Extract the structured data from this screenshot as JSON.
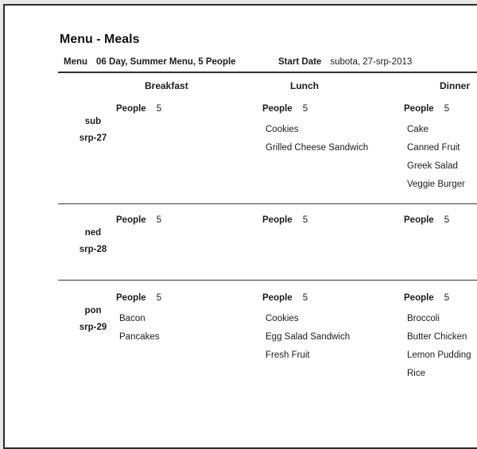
{
  "page": {
    "title": "Menu - Meals",
    "meta": {
      "menu_label": "Menu",
      "menu_value": "06 Day, Summer Menu, 5 People",
      "start_date_label": "Start Date",
      "start_date_value": "subota, 27-srp-2013"
    },
    "columns": [
      "Breakfast",
      "Lunch",
      "Dinner"
    ],
    "people_label": "People",
    "days": [
      {
        "day": "sub",
        "date": "srp-27",
        "meals": {
          "breakfast": {
            "people": "5",
            "items": []
          },
          "lunch": {
            "people": "5",
            "items": [
              "Cookies",
              "Grilled Cheese Sandwich"
            ]
          },
          "dinner": {
            "people": "5",
            "items": [
              "Cake",
              "Canned Fruit",
              "Greek Salad",
              "Veggie Burger"
            ]
          }
        }
      },
      {
        "day": "ned",
        "date": "srp-28",
        "meals": {
          "breakfast": {
            "people": "5",
            "items": []
          },
          "lunch": {
            "people": "5",
            "items": []
          },
          "dinner": {
            "people": "5",
            "items": []
          }
        }
      },
      {
        "day": "pon",
        "date": "srp-29",
        "meals": {
          "breakfast": {
            "people": "5",
            "items": [
              "Bacon",
              "Pancakes"
            ]
          },
          "lunch": {
            "people": "5",
            "items": [
              "Cookies",
              "Egg Salad Sandwich",
              "Fresh Fruit"
            ]
          },
          "dinner": {
            "people": "5",
            "items": [
              "Broccoli",
              "Butter Chicken",
              "Lemon Pudding",
              "Rice"
            ]
          }
        }
      }
    ]
  }
}
